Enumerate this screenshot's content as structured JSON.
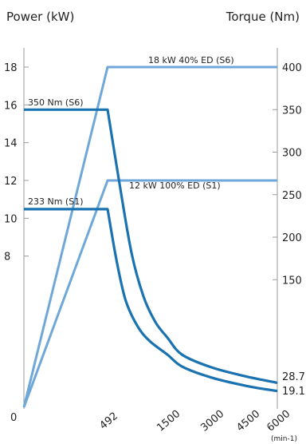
{
  "chart_data": {
    "type": "line",
    "ylabel_left": "Power (kW)",
    "ylabel_right": "Torque (Nm)",
    "x_unit": "(min-1)",
    "x_tick_labels": [
      "492",
      "1500",
      "3000",
      "4500",
      "6000"
    ],
    "x_tick_values": [
      492,
      1500,
      3000,
      4500,
      6000
    ],
    "x_origin_label": "0",
    "y_left_ticks": [
      8,
      10,
      12,
      14,
      16,
      18
    ],
    "y_right_ticks": [
      150,
      200,
      250,
      300,
      350,
      400
    ],
    "y_right_end_labels": [
      "28.7",
      "19.1"
    ],
    "grid": false,
    "colors": {
      "power": "#6fa8d8",
      "torque": "#1a73b0"
    },
    "series": [
      {
        "kind": "power",
        "label": "18 kW 40% ED (S6)",
        "points": [
          [
            0,
            0
          ],
          [
            492,
            18
          ],
          [
            6000,
            18
          ]
        ]
      },
      {
        "kind": "power",
        "label": "12 kW 100% ED  (S1)",
        "points": [
          [
            0,
            0
          ],
          [
            492,
            12
          ],
          [
            6000,
            12
          ]
        ]
      },
      {
        "kind": "torque",
        "label": "350 Nm (S6)",
        "points": [
          [
            0,
            350
          ],
          [
            492,
            350
          ],
          [
            700,
            260
          ],
          [
            900,
            180
          ],
          [
            1100,
            130
          ],
          [
            1300,
            100
          ],
          [
            1500,
            82
          ],
          [
            2000,
            62
          ],
          [
            3000,
            47
          ],
          [
            4500,
            36
          ],
          [
            6000,
            28.7
          ]
        ]
      },
      {
        "kind": "torque",
        "label": "233 Nm (S1)",
        "points": [
          [
            0,
            233
          ],
          [
            492,
            233
          ],
          [
            650,
            170
          ],
          [
            800,
            125
          ],
          [
            1000,
            95
          ],
          [
            1200,
            78
          ],
          [
            1500,
            62
          ],
          [
            2000,
            48
          ],
          [
            3000,
            35
          ],
          [
            4500,
            25
          ],
          [
            6000,
            19.1
          ]
        ]
      }
    ]
  }
}
